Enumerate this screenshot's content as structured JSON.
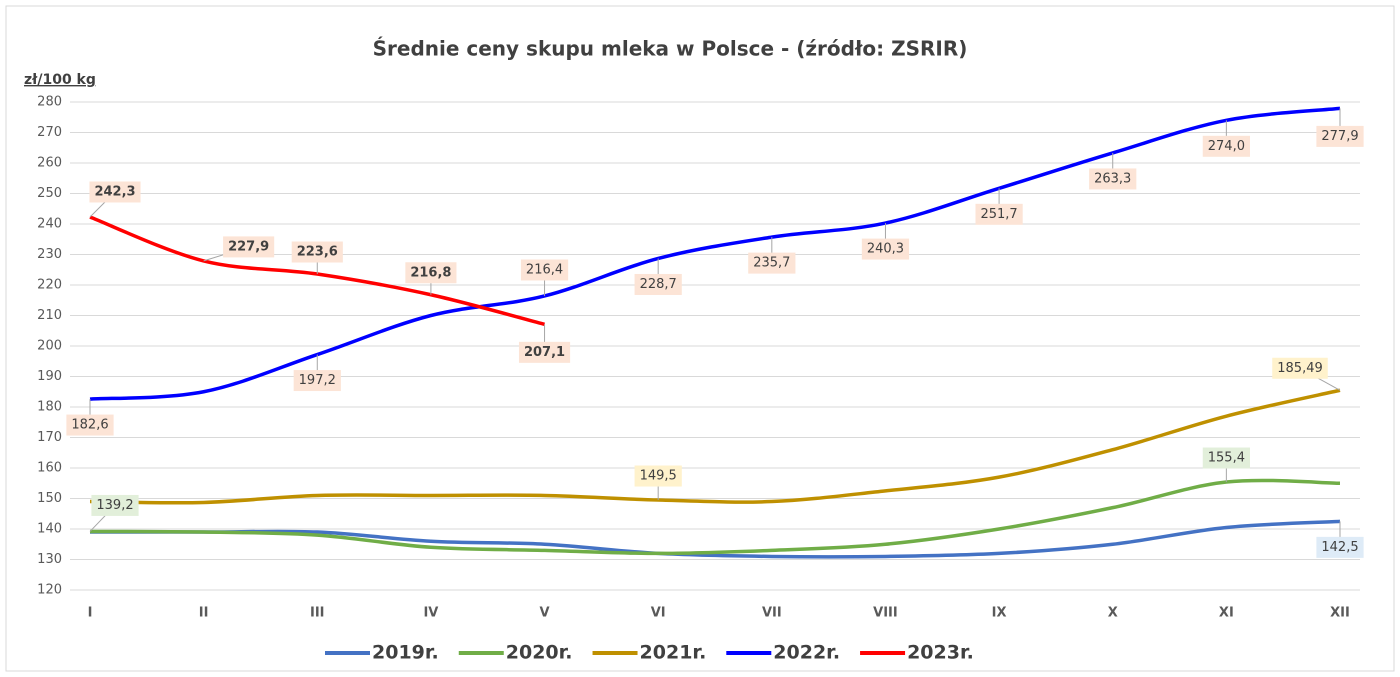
{
  "chart_data": {
    "type": "line",
    "title": "Średnie ceny skupu mleka w Polsce - (źródło: ZSRIR)",
    "y_label": "zł/100 kg",
    "categories": [
      "I",
      "II",
      "III",
      "IV",
      "V",
      "VI",
      "VII",
      "VIII",
      "IX",
      "X",
      "XI",
      "XII"
    ],
    "series": [
      {
        "name": "2019r.",
        "color": "#4472c4",
        "values": [
          139,
          139,
          139,
          136,
          135,
          132,
          131,
          131,
          132,
          135,
          140.5,
          142.5
        ],
        "value_labels": [
          null,
          null,
          null,
          null,
          null,
          null,
          null,
          null,
          null,
          null,
          null,
          "142,5"
        ]
      },
      {
        "name": "2020r.",
        "color": "#70ad47",
        "values": [
          139.2,
          139,
          138,
          134,
          133,
          132,
          133,
          135,
          140,
          147,
          155.4,
          155
        ],
        "value_labels": [
          "139,2",
          null,
          null,
          null,
          null,
          null,
          null,
          null,
          null,
          null,
          "155,4",
          null
        ]
      },
      {
        "name": "2021r.",
        "color": "#bf9000",
        "values": [
          149,
          148.7,
          151,
          151,
          151,
          149.5,
          149,
          152.5,
          157,
          166,
          177,
          185.49
        ],
        "value_labels": [
          null,
          null,
          null,
          null,
          null,
          "149,5",
          null,
          null,
          null,
          null,
          null,
          "185,49"
        ]
      },
      {
        "name": "2022r.",
        "color": "#0000ff",
        "values": [
          182.6,
          185,
          197.2,
          210,
          216.4,
          228.7,
          235.7,
          240.3,
          251.7,
          263.3,
          274.0,
          277.9
        ],
        "value_labels": [
          "182,6",
          null,
          "197,2",
          null,
          "216,4",
          "228,7",
          "235,7",
          "240,3",
          "251,7",
          "263,3",
          "274,0",
          "277,9"
        ]
      },
      {
        "name": "2023r.",
        "color": "#ff0000",
        "values": [
          242.3,
          227.9,
          223.6,
          216.8,
          207.1,
          null,
          null,
          null,
          null,
          null,
          null,
          null
        ],
        "value_labels": [
          "242,3",
          "227,9",
          "223,6",
          "216,8",
          "207,1",
          null,
          null,
          null,
          null,
          null,
          null,
          null
        ]
      }
    ],
    "ylim": [
      120,
      280
    ],
    "yticks": [
      120,
      130,
      140,
      150,
      160,
      170,
      180,
      190,
      200,
      210,
      220,
      230,
      240,
      250,
      260,
      270,
      280
    ],
    "grid": true,
    "legend": "bottom"
  }
}
